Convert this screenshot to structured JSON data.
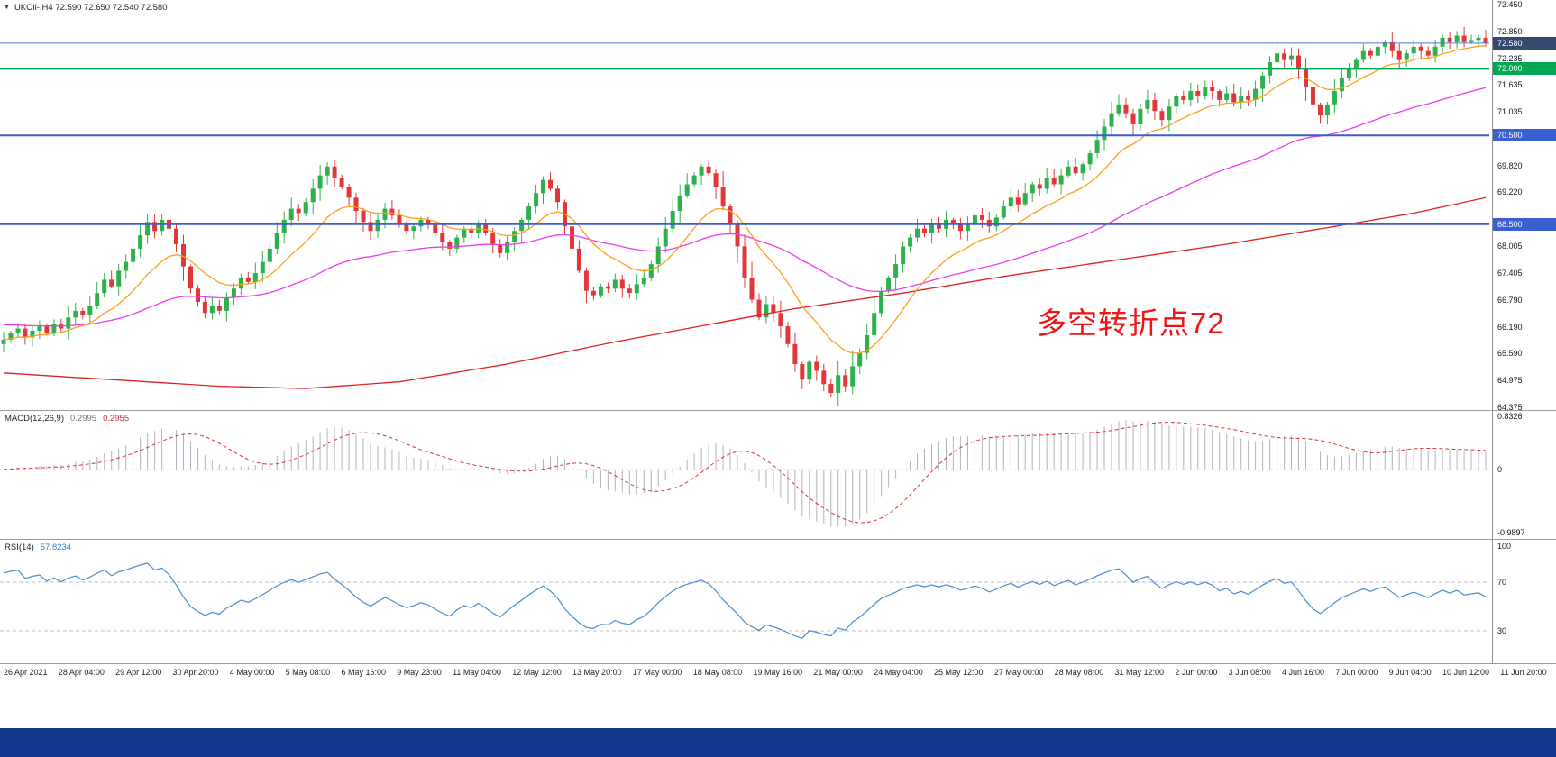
{
  "header": {
    "title": "UKOil-,H4 72.590 72.650 72.540 72.580"
  },
  "footer": {
    "color": "#15388f"
  },
  "chart_data": {
    "type": "candlestick",
    "symbol": "UKOil-",
    "timeframe": "H4",
    "ohlc": {
      "open": "72.590",
      "high": "72.650",
      "low": "72.540",
      "close": "72.580"
    },
    "annotation": {
      "text": "多空转折点72",
      "color": "#f01414"
    },
    "colors": {
      "up": "#2eb04c",
      "down": "#e03838",
      "ma_fast": "#ff9f1a",
      "ma_mid": "#ea3cea",
      "ma_slow": "#e02020",
      "rsi_line": "#4a8bd4",
      "macd_bar": "#b2b2bc",
      "macd_signal": "#d23535"
    },
    "y_axis": {
      "max": 73.45,
      "min": 64.375,
      "ticks": [
        "73.450",
        "72.850",
        "72.235",
        "71.635",
        "71.035",
        "69.820",
        "69.220",
        "68.005",
        "67.405",
        "66.790",
        "66.190",
        "65.590",
        "64.975",
        "64.375"
      ]
    },
    "price_lines": [
      {
        "price": "72.580",
        "name": "last-price",
        "line_color": "#4f79c8",
        "box_color": "#36486b",
        "width": 1
      },
      {
        "price": "72.000",
        "name": "level-72-000",
        "line_color": "#00a651",
        "box_color": "#00a651",
        "width": 2
      },
      {
        "price": "70.500",
        "name": "level-70-500",
        "line_color": "#3a5fd0",
        "box_color": "#3a5fd0",
        "width": 2
      },
      {
        "price": "68.500",
        "name": "level-68-500",
        "line_color": "#3a5fd0",
        "box_color": "#3a5fd0",
        "width": 2
      }
    ],
    "candles": {
      "first_open": 65.8,
      "closes": [
        65.9,
        66.05,
        66.15,
        65.95,
        66.1,
        66.2,
        66.05,
        66.25,
        66.15,
        66.4,
        66.55,
        66.45,
        66.65,
        66.95,
        67.25,
        67.1,
        67.45,
        67.65,
        67.95,
        68.25,
        68.55,
        68.35,
        68.6,
        68.4,
        68.05,
        67.55,
        67.05,
        66.75,
        66.5,
        66.65,
        66.55,
        66.85,
        67.05,
        67.3,
        67.2,
        67.4,
        67.65,
        67.95,
        68.3,
        68.6,
        68.85,
        68.75,
        69.0,
        69.3,
        69.6,
        69.8,
        69.55,
        69.35,
        69.1,
        68.8,
        68.55,
        68.35,
        68.6,
        68.85,
        68.7,
        68.5,
        68.35,
        68.45,
        68.6,
        68.5,
        68.3,
        68.1,
        67.95,
        68.2,
        68.4,
        68.3,
        68.5,
        68.3,
        68.05,
        67.85,
        68.1,
        68.35,
        68.6,
        68.9,
        69.2,
        69.5,
        69.3,
        69.0,
        68.45,
        67.95,
        67.45,
        67.0,
        66.9,
        67.1,
        67.05,
        67.25,
        67.05,
        66.95,
        67.15,
        67.3,
        67.6,
        68.0,
        68.4,
        68.8,
        69.15,
        69.4,
        69.6,
        69.8,
        69.65,
        69.35,
        68.9,
        68.5,
        68.0,
        67.3,
        66.8,
        66.4,
        66.7,
        66.5,
        66.2,
        65.8,
        65.35,
        65.0,
        65.4,
        65.2,
        64.9,
        64.7,
        65.1,
        64.85,
        65.3,
        65.6,
        66.0,
        66.5,
        67.0,
        67.3,
        67.6,
        68.0,
        68.2,
        68.4,
        68.3,
        68.5,
        68.4,
        68.6,
        68.5,
        68.35,
        68.5,
        68.7,
        68.6,
        68.45,
        68.65,
        68.9,
        69.1,
        68.95,
        69.2,
        69.4,
        69.3,
        69.55,
        69.4,
        69.6,
        69.8,
        69.65,
        69.85,
        70.1,
        70.4,
        70.7,
        71.0,
        71.2,
        71.0,
        70.75,
        71.1,
        71.3,
        71.05,
        70.85,
        71.15,
        71.4,
        71.3,
        71.5,
        71.4,
        71.6,
        71.5,
        71.3,
        71.45,
        71.25,
        71.4,
        71.3,
        71.55,
        71.85,
        72.15,
        72.35,
        72.2,
        72.3,
        72.0,
        71.6,
        71.2,
        70.95,
        71.2,
        71.5,
        71.8,
        72.0,
        72.2,
        72.4,
        72.3,
        72.5,
        72.6,
        72.4,
        72.2,
        72.35,
        72.5,
        72.4,
        72.3,
        72.5,
        72.7,
        72.6,
        72.75,
        72.6,
        72.65,
        72.7,
        72.58
      ]
    },
    "ma_red_anchors": [
      [
        0,
        65.15
      ],
      [
        15,
        65.0
      ],
      [
        30,
        64.85
      ],
      [
        42,
        64.8
      ],
      [
        55,
        64.95
      ],
      [
        70,
        65.35
      ],
      [
        85,
        65.85
      ],
      [
        100,
        66.3
      ],
      [
        110,
        66.6
      ],
      [
        125,
        66.95
      ],
      [
        140,
        67.35
      ],
      [
        155,
        67.7
      ],
      [
        170,
        68.05
      ],
      [
        185,
        68.45
      ],
      [
        196,
        68.75
      ],
      [
        206,
        69.1
      ]
    ],
    "macd": {
      "label": "MACD(12,26,9)",
      "main_value": "0.2995",
      "signal_value": "0.2955",
      "axis_max": "0.8326",
      "axis_zero": "0",
      "axis_min": "-0.9897",
      "fast": 12,
      "slow": 26,
      "signal": 9
    },
    "rsi": {
      "label": "RSI(14)",
      "value": "57.8234",
      "period": 14,
      "axis_ticks": [
        "100",
        "70",
        "30"
      ],
      "levels": [
        70,
        30
      ]
    },
    "x_labels": [
      "26 Apr 2021",
      "28 Apr 04:00",
      "29 Apr 12:00",
      "30 Apr 20:00",
      "4 May 00:00",
      "5 May 08:00",
      "6 May 16:00",
      "9 May 23:00",
      "11 May 04:00",
      "12 May 12:00",
      "13 May 20:00",
      "17 May 00:00",
      "18 May 08:00",
      "19 May 16:00",
      "21 May 00:00",
      "24 May 04:00",
      "25 May 12:00",
      "27 May 00:00",
      "28 May 08:00",
      "31 May 12:00",
      "2 Jun 00:00",
      "3 Jun 08:00",
      "4 Jun 16:00",
      "7 Jun 00:00",
      "9 Jun 04:00",
      "10 Jun 12:00",
      "11 Jun 20:00"
    ]
  }
}
